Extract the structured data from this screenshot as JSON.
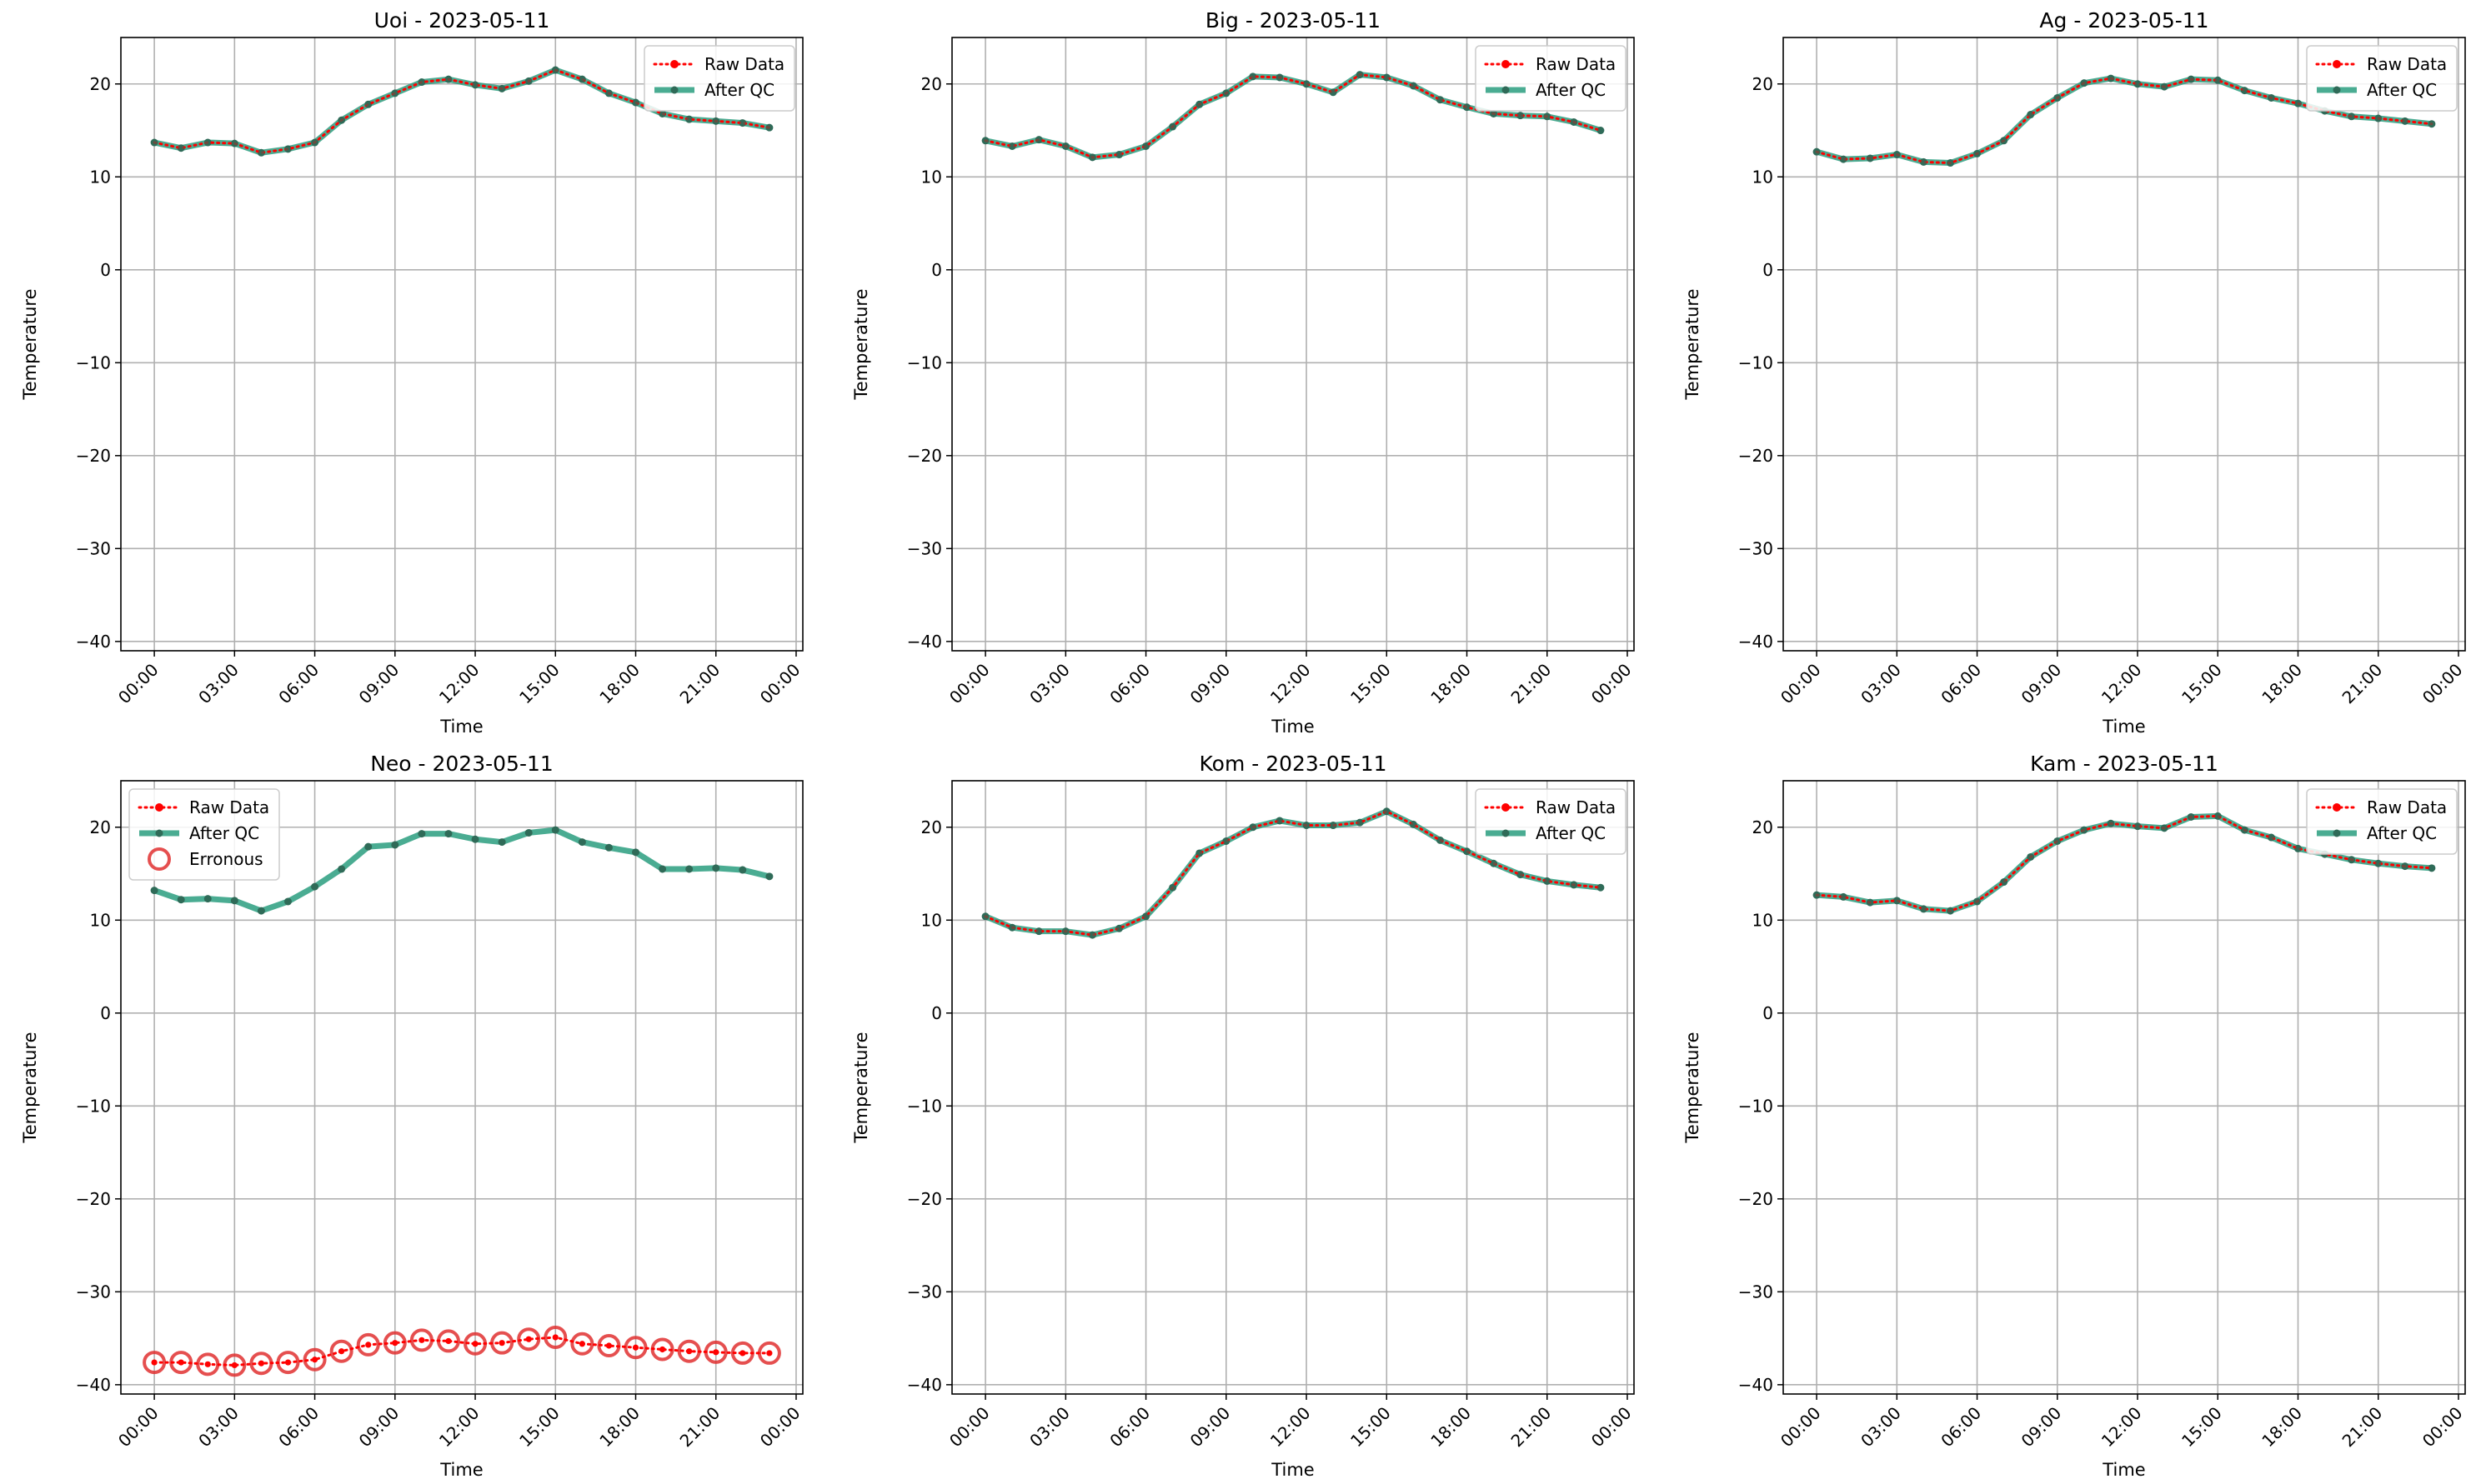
{
  "colors": {
    "raw": "#ff0000",
    "qc": "#2a9d7f",
    "qc_marker": "#2f6b58",
    "erroneous": "#e03030",
    "grid": "#b0b0b0",
    "legend_border": "#cccccc"
  },
  "chart_data": [
    {
      "type": "line",
      "title": "Uoi - 2023-05-11",
      "xlabel": "Time",
      "ylabel": "Temperature",
      "ylim": [
        -41,
        25
      ],
      "yticks": [
        20,
        10,
        0,
        -10,
        -20,
        -30,
        -40
      ],
      "xlim": [
        -1.25,
        24.25
      ],
      "xticks": [
        "00:00",
        "03:00",
        "06:00",
        "09:00",
        "12:00",
        "15:00",
        "18:00",
        "21:00",
        "00:00"
      ],
      "grid": true,
      "legend_position": "top-right",
      "legend": [
        "Raw Data",
        "After QC"
      ],
      "hours": [
        0,
        1,
        2,
        3,
        4,
        5,
        6,
        7,
        8,
        9,
        10,
        11,
        12,
        13,
        14,
        15,
        16,
        17,
        18,
        19,
        20,
        21,
        22,
        23
      ],
      "series": [
        {
          "name": "Raw Data",
          "values": [
            13.7,
            13.1,
            13.7,
            13.6,
            12.6,
            13.0,
            13.7,
            16.1,
            17.8,
            19.0,
            20.2,
            20.5,
            19.9,
            19.5,
            20.3,
            21.5,
            20.5,
            19.0,
            18.0,
            16.8,
            16.2,
            16.0,
            15.8,
            15.3
          ]
        },
        {
          "name": "After QC",
          "values": [
            13.7,
            13.1,
            13.7,
            13.6,
            12.6,
            13.0,
            13.7,
            16.1,
            17.8,
            19.0,
            20.2,
            20.5,
            19.9,
            19.5,
            20.3,
            21.5,
            20.5,
            19.0,
            18.0,
            16.8,
            16.2,
            16.0,
            15.8,
            15.3
          ]
        }
      ]
    },
    {
      "type": "line",
      "title": "Big - 2023-05-11",
      "xlabel": "Time",
      "ylabel": "Temperature",
      "ylim": [
        -41,
        25
      ],
      "yticks": [
        20,
        10,
        0,
        -10,
        -20,
        -30,
        -40
      ],
      "xlim": [
        -1.25,
        24.25
      ],
      "xticks": [
        "00:00",
        "03:00",
        "06:00",
        "09:00",
        "12:00",
        "15:00",
        "18:00",
        "21:00",
        "00:00"
      ],
      "grid": true,
      "legend_position": "top-right",
      "legend": [
        "Raw Data",
        "After QC"
      ],
      "hours": [
        0,
        1,
        2,
        3,
        4,
        5,
        6,
        7,
        8,
        9,
        10,
        11,
        12,
        13,
        14,
        15,
        16,
        17,
        18,
        19,
        20,
        21,
        22,
        23
      ],
      "series": [
        {
          "name": "Raw Data",
          "values": [
            13.9,
            13.3,
            14.0,
            13.3,
            12.1,
            12.4,
            13.3,
            15.4,
            17.8,
            19.0,
            20.8,
            20.7,
            20.0,
            19.1,
            21.0,
            20.7,
            19.8,
            18.3,
            17.5,
            16.8,
            16.6,
            16.5,
            15.9,
            15.0
          ]
        },
        {
          "name": "After QC",
          "values": [
            13.9,
            13.3,
            14.0,
            13.3,
            12.1,
            12.4,
            13.3,
            15.4,
            17.8,
            19.0,
            20.8,
            20.7,
            20.0,
            19.1,
            21.0,
            20.7,
            19.8,
            18.3,
            17.5,
            16.8,
            16.6,
            16.5,
            15.9,
            15.0
          ]
        }
      ]
    },
    {
      "type": "line",
      "title": "Ag - 2023-05-11",
      "xlabel": "Time",
      "ylabel": "Temperature",
      "ylim": [
        -41,
        25
      ],
      "yticks": [
        20,
        10,
        0,
        -10,
        -20,
        -30,
        -40
      ],
      "xlim": [
        -1.25,
        24.25
      ],
      "xticks": [
        "00:00",
        "03:00",
        "06:00",
        "09:00",
        "12:00",
        "15:00",
        "18:00",
        "21:00",
        "00:00"
      ],
      "grid": true,
      "legend_position": "top-right",
      "legend": [
        "Raw Data",
        "After QC"
      ],
      "hours": [
        0,
        1,
        2,
        3,
        4,
        5,
        6,
        7,
        8,
        9,
        10,
        11,
        12,
        13,
        14,
        15,
        16,
        17,
        18,
        19,
        20,
        21,
        22,
        23
      ],
      "series": [
        {
          "name": "Raw Data",
          "values": [
            12.7,
            11.9,
            12.0,
            12.4,
            11.6,
            11.5,
            12.5,
            13.9,
            16.7,
            18.5,
            20.1,
            20.6,
            20.0,
            19.7,
            20.5,
            20.4,
            19.3,
            18.5,
            17.9,
            17.1,
            16.5,
            16.3,
            16.0,
            15.7
          ]
        },
        {
          "name": "After QC",
          "values": [
            12.7,
            11.9,
            12.0,
            12.4,
            11.6,
            11.5,
            12.5,
            13.9,
            16.7,
            18.5,
            20.1,
            20.6,
            20.0,
            19.7,
            20.5,
            20.4,
            19.3,
            18.5,
            17.9,
            17.1,
            16.5,
            16.3,
            16.0,
            15.7
          ]
        }
      ]
    },
    {
      "type": "line",
      "title": "Neo - 2023-05-11",
      "xlabel": "Time",
      "ylabel": "Temperature",
      "ylim": [
        -41,
        25
      ],
      "yticks": [
        20,
        10,
        0,
        -10,
        -20,
        -30,
        -40
      ],
      "xlim": [
        -1.25,
        24.25
      ],
      "xticks": [
        "00:00",
        "03:00",
        "06:00",
        "09:00",
        "12:00",
        "15:00",
        "18:00",
        "21:00",
        "00:00"
      ],
      "grid": true,
      "legend_position": "top-left",
      "legend": [
        "Raw Data",
        "After QC",
        "Erronous"
      ],
      "hours": [
        0,
        1,
        2,
        3,
        4,
        5,
        6,
        7,
        8,
        9,
        10,
        11,
        12,
        13,
        14,
        15,
        16,
        17,
        18,
        19,
        20,
        21,
        22,
        23
      ],
      "series": [
        {
          "name": "Raw Data",
          "values": [
            -37.6,
            -37.6,
            -37.8,
            -37.9,
            -37.7,
            -37.6,
            -37.3,
            -36.4,
            -35.7,
            -35.5,
            -35.2,
            -35.3,
            -35.6,
            -35.5,
            -35.1,
            -34.9,
            -35.6,
            -35.8,
            -36.0,
            -36.2,
            -36.4,
            -36.5,
            -36.6,
            -36.6
          ]
        },
        {
          "name": "After QC",
          "values": [
            13.2,
            12.2,
            12.3,
            12.1,
            11.0,
            12.0,
            13.6,
            15.5,
            17.9,
            18.1,
            19.3,
            19.3,
            18.7,
            18.4,
            19.4,
            19.7,
            18.4,
            17.8,
            17.3,
            15.5,
            15.5,
            15.6,
            15.4,
            14.7
          ]
        }
      ],
      "erroneous": {
        "name": "Erronous",
        "values": [
          -37.6,
          -37.6,
          -37.8,
          -37.9,
          -37.7,
          -37.6,
          -37.3,
          -36.4,
          -35.7,
          -35.5,
          -35.2,
          -35.3,
          -35.6,
          -35.5,
          -35.1,
          -34.9,
          -35.6,
          -35.8,
          -36.0,
          -36.2,
          -36.4,
          -36.5,
          -36.6,
          -36.6
        ]
      }
    },
    {
      "type": "line",
      "title": "Kom - 2023-05-11",
      "xlabel": "Time",
      "ylabel": "Temperature",
      "ylim": [
        -41,
        25
      ],
      "yticks": [
        20,
        10,
        0,
        -10,
        -20,
        -30,
        -40
      ],
      "xlim": [
        -1.25,
        24.25
      ],
      "xticks": [
        "00:00",
        "03:00",
        "06:00",
        "09:00",
        "12:00",
        "15:00",
        "18:00",
        "21:00",
        "00:00"
      ],
      "grid": true,
      "legend_position": "top-right",
      "legend": [
        "Raw Data",
        "After QC"
      ],
      "hours": [
        0,
        1,
        2,
        3,
        4,
        5,
        6,
        7,
        8,
        9,
        10,
        11,
        12,
        13,
        14,
        15,
        16,
        17,
        18,
        19,
        20,
        21,
        22,
        23
      ],
      "series": [
        {
          "name": "Raw Data",
          "values": [
            10.4,
            9.2,
            8.8,
            8.8,
            8.4,
            9.1,
            10.4,
            13.5,
            17.2,
            18.5,
            20.0,
            20.7,
            20.2,
            20.2,
            20.5,
            21.7,
            20.3,
            18.6,
            17.4,
            16.1,
            14.9,
            14.2,
            13.8,
            13.5
          ]
        },
        {
          "name": "After QC",
          "values": [
            10.4,
            9.2,
            8.8,
            8.8,
            8.4,
            9.1,
            10.4,
            13.5,
            17.2,
            18.5,
            20.0,
            20.7,
            20.2,
            20.2,
            20.5,
            21.7,
            20.3,
            18.6,
            17.4,
            16.1,
            14.9,
            14.2,
            13.8,
            13.5
          ]
        }
      ]
    },
    {
      "type": "line",
      "title": "Kam - 2023-05-11",
      "xlabel": "Time",
      "ylabel": "Temperature",
      "ylim": [
        -41,
        25
      ],
      "yticks": [
        20,
        10,
        0,
        -10,
        -20,
        -30,
        -40
      ],
      "xlim": [
        -1.25,
        24.25
      ],
      "xticks": [
        "00:00",
        "03:00",
        "06:00",
        "09:00",
        "12:00",
        "15:00",
        "18:00",
        "21:00",
        "00:00"
      ],
      "grid": true,
      "legend_position": "top-right",
      "legend": [
        "Raw Data",
        "After QC"
      ],
      "hours": [
        0,
        1,
        2,
        3,
        4,
        5,
        6,
        7,
        8,
        9,
        10,
        11,
        12,
        13,
        14,
        15,
        16,
        17,
        18,
        19,
        20,
        21,
        22,
        23
      ],
      "series": [
        {
          "name": "Raw Data",
          "values": [
            12.7,
            12.5,
            11.9,
            12.1,
            11.2,
            11.0,
            12.0,
            14.1,
            16.8,
            18.5,
            19.7,
            20.4,
            20.1,
            19.9,
            21.1,
            21.2,
            19.7,
            18.9,
            17.7,
            17.1,
            16.5,
            16.1,
            15.8,
            15.6
          ]
        },
        {
          "name": "After QC",
          "values": [
            12.7,
            12.5,
            11.9,
            12.1,
            11.2,
            11.0,
            12.0,
            14.1,
            16.8,
            18.5,
            19.7,
            20.4,
            20.1,
            19.9,
            21.1,
            21.2,
            19.7,
            18.9,
            17.7,
            17.1,
            16.5,
            16.1,
            15.8,
            15.6
          ]
        }
      ]
    }
  ]
}
